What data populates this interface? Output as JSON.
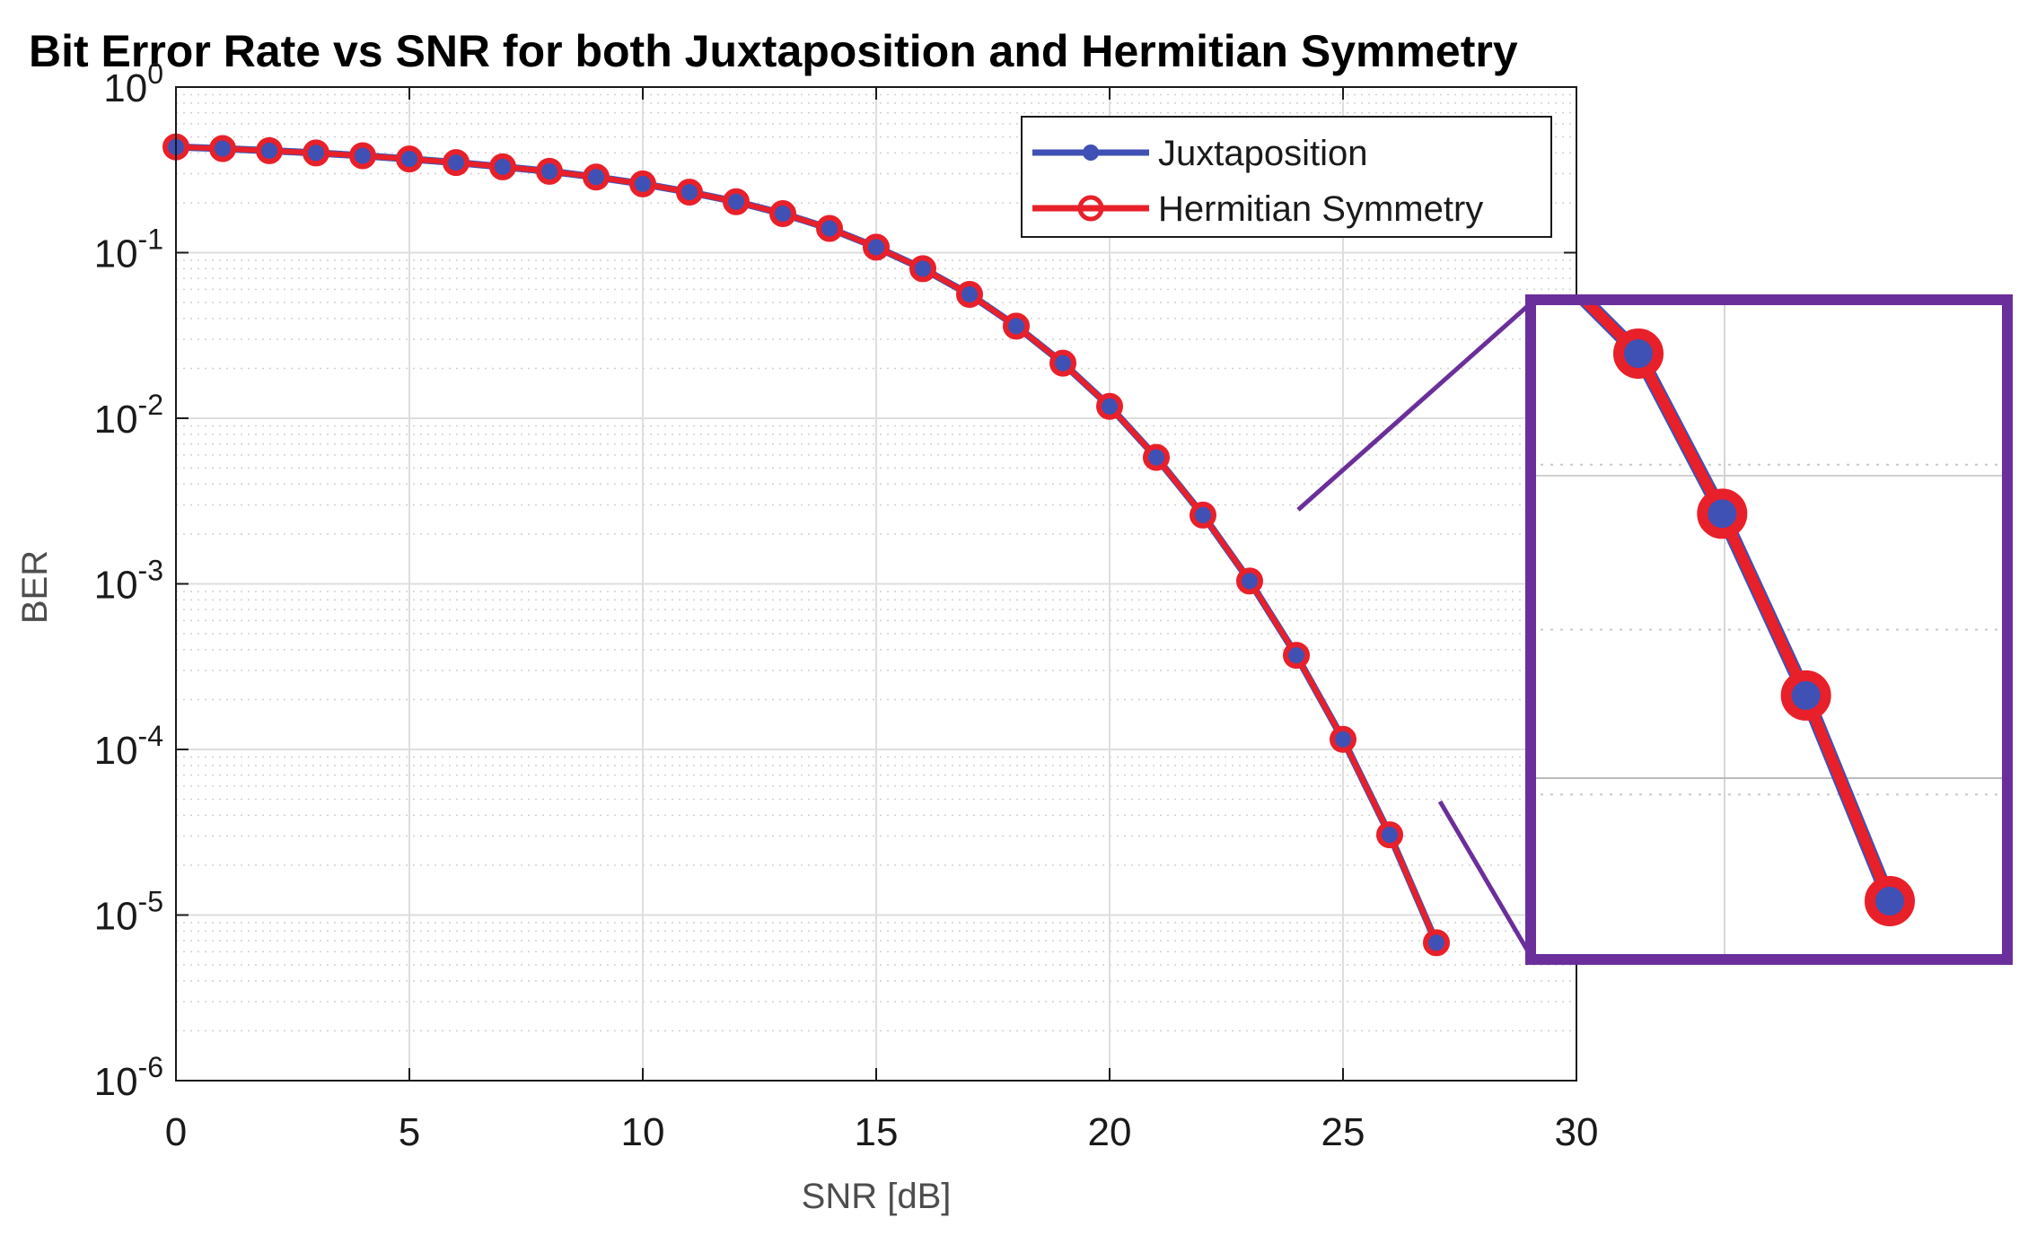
{
  "chart_data": {
    "type": "line",
    "title": "Bit Error Rate vs SNR for both Juxtaposition and Hermitian Symmetry",
    "xlabel": "SNR [dB]",
    "ylabel": "BER",
    "xlim": [
      0,
      30
    ],
    "ylim": [
      1e-06,
      1
    ],
    "yscale": "log",
    "grid": true,
    "legend_position": "top-right",
    "x_ticks": [
      "0",
      "5",
      "10",
      "15",
      "20",
      "25",
      "30"
    ],
    "y_ticks": [
      {
        "base": "10",
        "exp": "0"
      },
      {
        "base": "10",
        "exp": "-1"
      },
      {
        "base": "10",
        "exp": "-2"
      },
      {
        "base": "10",
        "exp": "-3"
      },
      {
        "base": "10",
        "exp": "-4"
      },
      {
        "base": "10",
        "exp": "-5"
      },
      {
        "base": "10",
        "exp": "-6"
      }
    ],
    "x": [
      0,
      1,
      2,
      3,
      4,
      5,
      6,
      7,
      8,
      9,
      10,
      11,
      12,
      13,
      14,
      15,
      16,
      17,
      18,
      19,
      20,
      21,
      22,
      23,
      24,
      25,
      26,
      27
    ],
    "series": [
      {
        "name": "Juxtaposition",
        "color": "#3f51b5",
        "marker": "filled-dot",
        "values": [
          0.435,
          0.425,
          0.413,
          0.4,
          0.385,
          0.368,
          0.35,
          0.33,
          0.31,
          0.286,
          0.26,
          0.232,
          0.203,
          0.172,
          0.14,
          0.108,
          0.08,
          0.056,
          0.036,
          0.0215,
          0.0118,
          0.0058,
          0.0026,
          0.00104,
          0.00037,
          0.000115,
          3.05e-05,
          6.8e-06
        ]
      },
      {
        "name": "Hermitian Symmetry",
        "color": "#e8202a",
        "marker": "open-circle",
        "values": [
          0.435,
          0.425,
          0.413,
          0.4,
          0.385,
          0.368,
          0.35,
          0.33,
          0.31,
          0.286,
          0.26,
          0.232,
          0.203,
          0.172,
          0.14,
          0.108,
          0.08,
          0.056,
          0.036,
          0.0215,
          0.0118,
          0.0058,
          0.0026,
          0.00104,
          0.00037,
          0.000115,
          3.05e-05,
          6.8e-06
        ]
      }
    ],
    "zoom_inset": {
      "border_color": "#6a2f9a",
      "source_x_range": [
        24,
        27
      ],
      "note": "magnified view of SNR 24-27 dB"
    }
  }
}
